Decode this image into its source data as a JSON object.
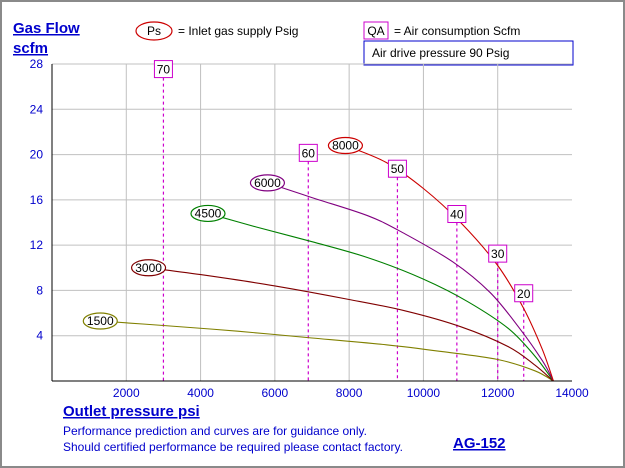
{
  "chart_data": {
    "type": "line",
    "ylabel_line1": "Gas Flow",
    "ylabel_line2": "scfm",
    "xlabel": "Outlet pressure   psi",
    "xlim": [
      0,
      14000
    ],
    "ylim": [
      0,
      28
    ],
    "xticks": [
      "2000",
      "4000",
      "6000",
      "8000",
      "10000",
      "12000",
      "14000"
    ],
    "yticks": [
      "4",
      "8",
      "12",
      "16",
      "20",
      "24",
      "28"
    ],
    "grid": true,
    "legend": {
      "ps_badge": "Ps",
      "ps_text": "= Inlet gas supply  Psig",
      "qa_badge": "QA",
      "qa_text": "= Air consumption  Scfm",
      "drive_text": "Air drive pressure  90 Psig"
    },
    "series": [
      {
        "name": "1500",
        "color": "#808000",
        "points": [
          [
            1300,
            5.3
          ],
          [
            3000,
            4.9
          ],
          [
            5000,
            4.4
          ],
          [
            7000,
            3.8
          ],
          [
            9000,
            3.2
          ],
          [
            10500,
            2.6
          ],
          [
            12000,
            1.9
          ],
          [
            13000,
            0.9
          ],
          [
            13500,
            0
          ]
        ]
      },
      {
        "name": "3000",
        "color": "#800000",
        "points": [
          [
            2600,
            10.0
          ],
          [
            4000,
            9.4
          ],
          [
            6000,
            8.4
          ],
          [
            8000,
            7.2
          ],
          [
            9500,
            6.2
          ],
          [
            11000,
            4.8
          ],
          [
            12300,
            3.0
          ],
          [
            13000,
            1.4
          ],
          [
            13500,
            0
          ]
        ]
      },
      {
        "name": "4500",
        "color": "#008000",
        "points": [
          [
            4200,
            14.8
          ],
          [
            5500,
            13.6
          ],
          [
            7000,
            12.3
          ],
          [
            8500,
            10.9
          ],
          [
            10000,
            9.0
          ],
          [
            11200,
            7.0
          ],
          [
            12300,
            4.6
          ],
          [
            13000,
            2.2
          ],
          [
            13500,
            0
          ]
        ]
      },
      {
        "name": "6000",
        "color": "#800080",
        "points": [
          [
            5800,
            17.5
          ],
          [
            7000,
            16.2
          ],
          [
            8500,
            14.6
          ],
          [
            9500,
            13.0
          ],
          [
            10800,
            10.5
          ],
          [
            11800,
            7.8
          ],
          [
            12600,
            4.6
          ],
          [
            13200,
            1.8
          ],
          [
            13500,
            0
          ]
        ]
      },
      {
        "name": "8000",
        "color": "#cc0000",
        "points": [
          [
            7900,
            20.8
          ],
          [
            9000,
            19.3
          ],
          [
            10000,
            17.0
          ],
          [
            11000,
            14.0
          ],
          [
            12000,
            10.2
          ],
          [
            12700,
            6.4
          ],
          [
            13200,
            2.8
          ],
          [
            13500,
            0
          ]
        ]
      }
    ],
    "air_consumption": [
      {
        "label": "70",
        "x": 3000,
        "y_top": 26.8
      },
      {
        "label": "60",
        "x": 6900,
        "y_top": 19.4
      },
      {
        "label": "50",
        "x": 9300,
        "y_top": 18.0
      },
      {
        "label": "40",
        "x": 10900,
        "y_top": 14.0
      },
      {
        "label": "30",
        "x": 12000,
        "y_top": 10.5
      },
      {
        "label": "20",
        "x": 12700,
        "y_top": 7.0
      }
    ]
  },
  "footer": {
    "line1": "Performance prediction and curves are for guidance only.",
    "line2": "Should certified performance be required please contact factory.",
    "model": "AG-152"
  },
  "colors": {
    "axis_text": "#0000cc",
    "grid": "#c0c0c0",
    "vline": "#cc00cc",
    "badge": "#cc00cc",
    "ellipse": "#cc0000"
  }
}
